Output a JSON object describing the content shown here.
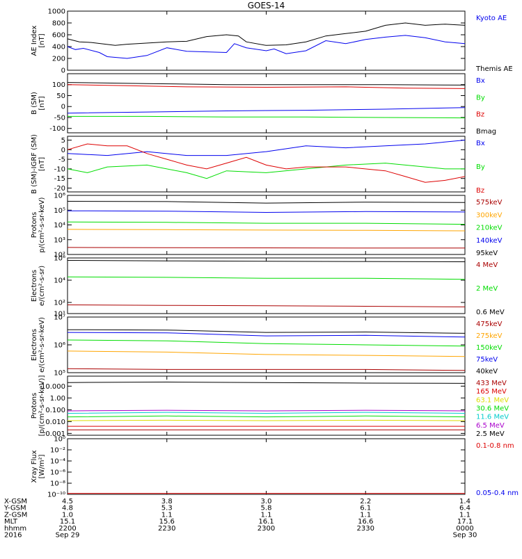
{
  "title": "GOES-14",
  "palette": {
    "black": "#000000",
    "blue": "#0000ee",
    "green": "#00dd00",
    "red": "#dd0000",
    "darkred": "#aa0000",
    "orange": "#ffa500",
    "yellow": "#dddd00",
    "cyan": "#00cccc",
    "magenta": "#aa00cc"
  },
  "chart_data": [
    {
      "type": "line",
      "id": "ae",
      "ylabel": [
        "AE Index",
        "[nT]"
      ],
      "yscale": "linear",
      "ylim": [
        0,
        1000
      ],
      "yticks": [
        {
          "v": 0,
          "l": "0"
        },
        {
          "v": 200,
          "l": "200"
        },
        {
          "v": 400,
          "l": "400"
        },
        {
          "v": 600,
          "l": "600"
        },
        {
          "v": 800,
          "l": "800"
        },
        {
          "v": 1000,
          "l": "1000"
        }
      ],
      "series": [
        {
          "name": "Kyoto AE",
          "color": "blue",
          "x": [
            0,
            2,
            4,
            8,
            10,
            15,
            20,
            25,
            30,
            40,
            42,
            45,
            50,
            52,
            55,
            60,
            65,
            70,
            75,
            80,
            85,
            90,
            95,
            100
          ],
          "y": [
            400,
            350,
            370,
            300,
            230,
            200,
            250,
            380,
            320,
            300,
            450,
            380,
            330,
            360,
            280,
            330,
            500,
            450,
            520,
            560,
            590,
            550,
            480,
            450
          ]
        },
        {
          "name": "Themis AE",
          "color": "black",
          "x": [
            0,
            3,
            6,
            12,
            15,
            25,
            30,
            35,
            40,
            43,
            45,
            50,
            55,
            60,
            65,
            70,
            75,
            80,
            85,
            90,
            95,
            100
          ],
          "y": [
            530,
            480,
            470,
            420,
            440,
            480,
            490,
            570,
            600,
            580,
            480,
            420,
            430,
            480,
            580,
            620,
            660,
            760,
            800,
            760,
            780,
            760
          ]
        }
      ]
    },
    {
      "type": "line",
      "id": "bsm",
      "ylabel": [
        "B (SM)",
        "[nT]"
      ],
      "yscale": "linear",
      "ylim": [
        -120,
        150
      ],
      "yticks": [
        {
          "v": -100,
          "l": "-100"
        },
        {
          "v": -50,
          "l": "-50"
        },
        {
          "v": 0,
          "l": "0"
        },
        {
          "v": 50,
          "l": "50"
        },
        {
          "v": 100,
          "l": "100"
        }
      ],
      "series": [
        {
          "name": "Bx",
          "color": "blue",
          "x": [
            0,
            20,
            40,
            60,
            80,
            100
          ],
          "y": [
            -30,
            -25,
            -20,
            -17,
            -12,
            -5
          ]
        },
        {
          "name": "By",
          "color": "green",
          "x": [
            0,
            20,
            40,
            60,
            80,
            100
          ],
          "y": [
            -45,
            -45,
            -48,
            -48,
            -50,
            -52
          ]
        },
        {
          "name": "Bz",
          "color": "red",
          "x": [
            0,
            15,
            30,
            50,
            70,
            85,
            100
          ],
          "y": [
            100,
            95,
            90,
            88,
            90,
            84,
            82
          ]
        },
        {
          "name": "Bmag",
          "color": "black",
          "x": [
            0,
            20,
            40,
            60,
            80,
            100
          ],
          "y": [
            110,
            105,
            100,
            100,
            100,
            98
          ]
        }
      ]
    },
    {
      "type": "line",
      "id": "bigrf",
      "ylabel": [
        "B (SM)-IGRF (SM)",
        "[nT]"
      ],
      "yscale": "linear",
      "ylim": [
        -22,
        7
      ],
      "yticks": [
        {
          "v": -20,
          "l": "-20"
        },
        {
          "v": -15,
          "l": "-15"
        },
        {
          "v": -10,
          "l": "-10"
        },
        {
          "v": -5,
          "l": "-5"
        },
        {
          "v": 0,
          "l": "0"
        },
        {
          "v": 5,
          "l": "5"
        }
      ],
      "series": [
        {
          "name": "Bx",
          "color": "blue",
          "x": [
            0,
            10,
            20,
            30,
            40,
            50,
            60,
            70,
            80,
            90,
            100
          ],
          "y": [
            -2,
            -3,
            -1,
            -3,
            -3,
            -1,
            2,
            1,
            2,
            3,
            5
          ]
        },
        {
          "name": "By",
          "color": "green",
          "x": [
            0,
            5,
            10,
            20,
            30,
            35,
            40,
            50,
            60,
            70,
            80,
            90,
            95,
            100
          ],
          "y": [
            -10,
            -12,
            -9,
            -8,
            -12,
            -15,
            -11,
            -12,
            -10,
            -8,
            -7,
            -9,
            -10,
            -10
          ]
        },
        {
          "name": "Bz",
          "color": "red",
          "x": [
            0,
            5,
            10,
            15,
            20,
            25,
            30,
            35,
            40,
            45,
            50,
            55,
            60,
            70,
            80,
            85,
            90,
            95,
            100
          ],
          "y": [
            0,
            3,
            2,
            2,
            -2,
            -5,
            -8,
            -10,
            -7,
            -4,
            -8,
            -10,
            -9,
            -9,
            -11,
            -14,
            -17,
            -16,
            -14
          ]
        }
      ]
    },
    {
      "type": "line",
      "id": "protons1",
      "ylabel": [
        "Protons",
        "p/(cm²-s-sr-keV)"
      ],
      "yscale": "log",
      "ylim": [
        100,
        1000000
      ],
      "yticks": [
        {
          "v": 100,
          "l": "10²"
        },
        {
          "v": 1000,
          "l": "10³"
        },
        {
          "v": 10000,
          "l": "10⁴"
        },
        {
          "v": 100000,
          "l": "10⁵"
        },
        {
          "v": 1000000,
          "l": "10⁶"
        }
      ],
      "series": [
        {
          "name": "575keV",
          "color": "darkred",
          "x": [
            0,
            25,
            50,
            75,
            100
          ],
          "y": [
            300,
            290,
            280,
            270,
            270
          ]
        },
        {
          "name": "300keV",
          "color": "orange",
          "x": [
            0,
            25,
            50,
            75,
            100
          ],
          "y": [
            5000,
            4800,
            4500,
            4300,
            4000
          ]
        },
        {
          "name": "210keV",
          "color": "green",
          "x": [
            0,
            25,
            50,
            75,
            100
          ],
          "y": [
            16000,
            15000,
            13000,
            13000,
            11000
          ]
        },
        {
          "name": "140keV",
          "color": "blue",
          "x": [
            0,
            25,
            50,
            75,
            100
          ],
          "y": [
            90000,
            85000,
            70000,
            80000,
            75000
          ]
        },
        {
          "name": "95keV",
          "color": "black",
          "x": [
            0,
            25,
            50,
            75,
            100
          ],
          "y": [
            400000,
            380000,
            300000,
            350000,
            330000
          ]
        }
      ]
    },
    {
      "type": "line",
      "id": "electrons1",
      "ylabel": [
        "Electrons",
        "e/(cm²-s-sr)"
      ],
      "yscale": "log",
      "ylim": [
        10,
        1000000
      ],
      "yticks": [
        {
          "v": 10,
          "l": "10¹"
        },
        {
          "v": 100,
          "l": "10²"
        },
        {
          "v": 10000,
          "l": "10⁴"
        },
        {
          "v": 1000000,
          "l": "10⁶"
        }
      ],
      "series": [
        {
          "name": "4 MeV",
          "color": "darkred",
          "x": [
            0,
            25,
            50,
            75,
            100
          ],
          "y": [
            60,
            55,
            50,
            45,
            40
          ]
        },
        {
          "name": "2 MeV",
          "color": "green",
          "x": [
            0,
            25,
            50,
            75,
            100
          ],
          "y": [
            20000,
            18000,
            15000,
            15000,
            12000
          ]
        },
        {
          "name": "0.6 MeV",
          "color": "black",
          "x": [
            0,
            25,
            50,
            75,
            100
          ],
          "y": [
            600000,
            550000,
            500000,
            480000,
            450000
          ]
        }
      ]
    },
    {
      "type": "line",
      "id": "electrons2",
      "ylabel": [
        "Electrons",
        "e/(cm²-s-sr-keV)"
      ],
      "yscale": "log",
      "ylim": [
        100000,
        10000000
      ],
      "yticks": [
        {
          "v": 100000,
          "l": "10⁵"
        },
        {
          "v": 1000000,
          "l": "10⁶"
        },
        {
          "v": 10000000,
          "l": "10⁷"
        }
      ],
      "series": [
        {
          "name": "475keV",
          "color": "darkred",
          "x": [
            0,
            25,
            50,
            75,
            100
          ],
          "y": [
            140000,
            130000,
            130000,
            130000,
            120000
          ]
        },
        {
          "name": "275keV",
          "color": "orange",
          "x": [
            0,
            25,
            50,
            75,
            100
          ],
          "y": [
            600000,
            550000,
            450000,
            420000,
            380000
          ]
        },
        {
          "name": "150keV",
          "color": "green",
          "x": [
            0,
            25,
            50,
            75,
            100
          ],
          "y": [
            1500000,
            1400000,
            1100000,
            1000000,
            900000
          ]
        },
        {
          "name": "75keV",
          "color": "blue",
          "x": [
            0,
            25,
            50,
            75,
            100
          ],
          "y": [
            2800000,
            2700000,
            2100000,
            2200000,
            1900000
          ]
        },
        {
          "name": "40keV",
          "color": "black",
          "x": [
            0,
            25,
            50,
            75,
            100
          ],
          "y": [
            3500000,
            3400000,
            2800000,
            2900000,
            2600000
          ]
        }
      ]
    },
    {
      "type": "line",
      "id": "protons2",
      "ylabel": [
        "Protons",
        "[p/(cm²-s-sr-keV)]"
      ],
      "yscale": "log",
      "ylim": [
        0.0007,
        70
      ],
      "yticks": [
        {
          "v": 0.001,
          "l": "0.001"
        },
        {
          "v": 0.01,
          "l": "0.010"
        },
        {
          "v": 0.1,
          "l": "0.100"
        },
        {
          "v": 1,
          "l": "1.00"
        },
        {
          "v": 10,
          "l": "10.000"
        }
      ],
      "series": [
        {
          "name": "433 MeV",
          "color": "darkred",
          "x": [
            0,
            25,
            50,
            75,
            100
          ],
          "y": [
            0.002,
            0.002,
            0.002,
            0.002,
            0.002
          ]
        },
        {
          "name": "165 MeV",
          "color": "red",
          "x": [
            0,
            25,
            50,
            75,
            100
          ],
          "y": [
            0.004,
            0.004,
            0.004,
            0.004,
            0.004
          ]
        },
        {
          "name": "63.1 MeV",
          "color": "yellow",
          "x": [
            0,
            25,
            50,
            75,
            100
          ],
          "y": [
            0.012,
            0.013,
            0.012,
            0.013,
            0.012
          ]
        },
        {
          "name": "30.6 MeV",
          "color": "green",
          "x": [
            0,
            25,
            50,
            75,
            100
          ],
          "y": [
            0.025,
            0.03,
            0.025,
            0.03,
            0.025
          ]
        },
        {
          "name": "11.6 MeV",
          "color": "cyan",
          "x": [
            0,
            25,
            50,
            75,
            100
          ],
          "y": [
            0.05,
            0.06,
            0.05,
            0.06,
            0.05
          ]
        },
        {
          "name": "6.5 MeV",
          "color": "magenta",
          "x": [
            0,
            25,
            50,
            75,
            100
          ],
          "y": [
            0.08,
            0.09,
            0.08,
            0.09,
            0.08
          ]
        },
        {
          "name": "2.5 MeV",
          "color": "black",
          "x": [
            0,
            25,
            50,
            75,
            100
          ],
          "y": [
            20,
            22,
            20,
            18,
            17
          ]
        }
      ]
    },
    {
      "type": "line",
      "id": "xray",
      "ylabel": [
        "Xray Flux",
        "[W/m²]"
      ],
      "yscale": "log",
      "ylim": [
        1e-10,
        1
      ],
      "yticks": [
        {
          "v": 1,
          "l": "10⁰"
        },
        {
          "v": 0.01,
          "l": "10⁻²"
        },
        {
          "v": 0.0001,
          "l": "10⁻⁴"
        },
        {
          "v": 1e-06,
          "l": "10⁻⁶"
        },
        {
          "v": 1e-08,
          "l": "10⁻⁸"
        },
        {
          "v": 1e-10,
          "l": "10⁻¹⁰"
        }
      ],
      "series": [
        {
          "name": "0.1-0.8 nm",
          "color": "red",
          "x": [
            0,
            100
          ],
          "y": [
            1.5e-10,
            1.5e-10
          ]
        },
        {
          "name": "0.05-0.4 nm",
          "color": "blue",
          "x": [],
          "y": []
        }
      ]
    }
  ],
  "xaxis": {
    "rows": [
      {
        "label": "X-GSM",
        "values": [
          "4.5",
          "3.8",
          "3.0",
          "2.2",
          "1.4"
        ]
      },
      {
        "label": "Y-GSM",
        "values": [
          "4.8",
          "5.3",
          "5.8",
          "6.1",
          "6.4"
        ]
      },
      {
        "label": "Z-GSM",
        "values": [
          "1.0",
          "1.1",
          "1.1",
          "1.1",
          "1.1"
        ]
      },
      {
        "label": "MLT",
        "values": [
          "15.1",
          "15.6",
          "16.1",
          "16.6",
          "17.1"
        ]
      },
      {
        "label": "hhmm",
        "values": [
          "2200",
          "2230",
          "2300",
          "2330",
          "0000"
        ]
      },
      {
        "label": "2016",
        "values": [
          "Sep 29",
          "",
          "",
          "",
          "Sep 30"
        ]
      }
    ]
  }
}
